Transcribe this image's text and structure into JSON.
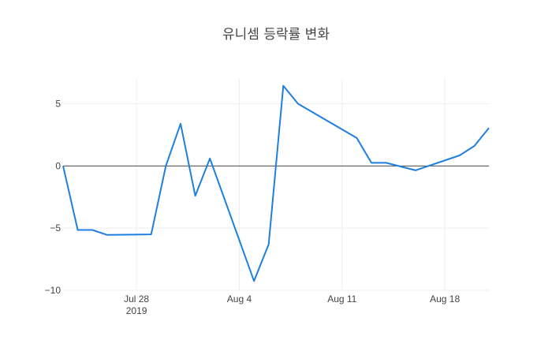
{
  "chart_data": {
    "type": "line",
    "title": "유니셈 등락률 변화",
    "xlabel": "",
    "ylabel": "",
    "x_ticks": [
      {
        "date": "2019-07-28",
        "label": "Jul 28",
        "sublabel": "2019"
      },
      {
        "date": "2019-08-04",
        "label": "Aug 4",
        "sublabel": ""
      },
      {
        "date": "2019-08-11",
        "label": "Aug 11",
        "sublabel": ""
      },
      {
        "date": "2019-08-18",
        "label": "Aug 18",
        "sublabel": ""
      }
    ],
    "y_ticks": [
      {
        "value": 5,
        "label": "5"
      },
      {
        "value": 0,
        "label": "0"
      },
      {
        "value": -5,
        "label": "−5"
      },
      {
        "value": -10,
        "label": "−10"
      }
    ],
    "xlim": [
      "2019-07-23",
      "2019-08-21"
    ],
    "ylim": [
      -10,
      7
    ],
    "grid": true,
    "zero_line": true,
    "colors": {
      "series": "#1f7fe0"
    },
    "series": [
      {
        "name": "",
        "points": [
          {
            "x": "2019-07-23",
            "y": 0.0
          },
          {
            "x": "2019-07-24",
            "y": -5.15
          },
          {
            "x": "2019-07-25",
            "y": -5.15
          },
          {
            "x": "2019-07-26",
            "y": -5.55
          },
          {
            "x": "2019-07-29",
            "y": -5.5
          },
          {
            "x": "2019-07-30",
            "y": 0.0
          },
          {
            "x": "2019-07-31",
            "y": 3.4
          },
          {
            "x": "2019-08-01",
            "y": -2.4
          },
          {
            "x": "2019-08-02",
            "y": 0.6
          },
          {
            "x": "2019-08-05",
            "y": -9.25
          },
          {
            "x": "2019-08-06",
            "y": -6.3
          },
          {
            "x": "2019-08-07",
            "y": 6.45
          },
          {
            "x": "2019-08-08",
            "y": 5.0
          },
          {
            "x": "2019-08-12",
            "y": 2.25
          },
          {
            "x": "2019-08-13",
            "y": 0.25
          },
          {
            "x": "2019-08-14",
            "y": 0.25
          },
          {
            "x": "2019-08-16",
            "y": -0.35
          },
          {
            "x": "2019-08-19",
            "y": 0.85
          },
          {
            "x": "2019-08-20",
            "y": 1.6
          },
          {
            "x": "2019-08-21",
            "y": 3.05
          }
        ]
      }
    ]
  }
}
